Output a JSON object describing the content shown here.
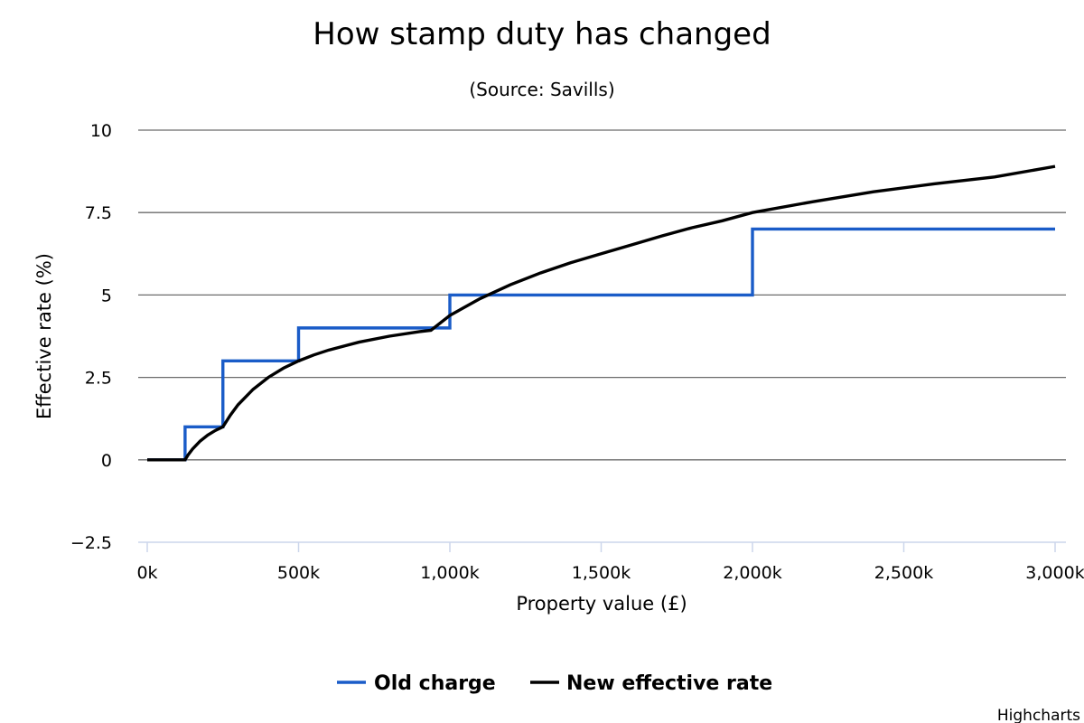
{
  "chart_data": {
    "type": "line",
    "title": "How stamp duty has changed",
    "subtitle": "(Source: Savills)",
    "xlabel": "Property value (£)",
    "ylabel": "Effective rate (%)",
    "xlim": [
      0,
      3000000
    ],
    "ylim": [
      -2.5,
      10
    ],
    "x_ticks": [
      0,
      500000,
      1000000,
      1500000,
      2000000,
      2500000,
      3000000
    ],
    "x_tick_labels": [
      "0k",
      "500k",
      "1,000k",
      "1,500k",
      "2,000k",
      "2,500k",
      "3,000k"
    ],
    "y_ticks": [
      -2.5,
      0,
      2.5,
      5,
      7.5,
      10
    ],
    "y_tick_labels": [
      "−2.5",
      "0",
      "2.5",
      "5",
      "7.5",
      "10"
    ],
    "grid": true,
    "legend_position": "bottom-center",
    "credits": "Highcharts",
    "series": [
      {
        "name": "Old charge",
        "color": "#1a5cc8",
        "step": true,
        "points": [
          [
            0,
            0
          ],
          [
            125000,
            0
          ],
          [
            125000,
            1
          ],
          [
            250000,
            1
          ],
          [
            250000,
            3
          ],
          [
            500000,
            3
          ],
          [
            500000,
            4
          ],
          [
            1000000,
            4
          ],
          [
            1000000,
            5
          ],
          [
            2000000,
            5
          ],
          [
            2000000,
            7
          ],
          [
            3000000,
            7
          ]
        ]
      },
      {
        "name": "New effective rate",
        "color": "#000000",
        "step": false,
        "points": [
          [
            0,
            0
          ],
          [
            125000,
            0
          ],
          [
            135000,
            0.15
          ],
          [
            150000,
            0.33
          ],
          [
            175000,
            0.57
          ],
          [
            200000,
            0.75
          ],
          [
            225000,
            0.89
          ],
          [
            250000,
            1.0
          ],
          [
            275000,
            1.36
          ],
          [
            300000,
            1.67
          ],
          [
            350000,
            2.14
          ],
          [
            400000,
            2.5
          ],
          [
            450000,
            2.78
          ],
          [
            500000,
            3.0
          ],
          [
            550000,
            3.18
          ],
          [
            600000,
            3.33
          ],
          [
            700000,
            3.57
          ],
          [
            800000,
            3.75
          ],
          [
            900000,
            3.89
          ],
          [
            937500,
            3.93
          ],
          [
            1000000,
            4.38
          ],
          [
            1100000,
            4.89
          ],
          [
            1200000,
            5.31
          ],
          [
            1300000,
            5.67
          ],
          [
            1400000,
            5.98
          ],
          [
            1500000,
            6.25
          ],
          [
            1600000,
            6.52
          ],
          [
            1700000,
            6.79
          ],
          [
            1800000,
            7.04
          ],
          [
            1900000,
            7.25
          ],
          [
            2000000,
            7.5
          ],
          [
            2200000,
            7.83
          ],
          [
            2400000,
            8.13
          ],
          [
            2600000,
            8.37
          ],
          [
            2800000,
            8.58
          ],
          [
            3000000,
            8.9
          ]
        ]
      }
    ]
  }
}
